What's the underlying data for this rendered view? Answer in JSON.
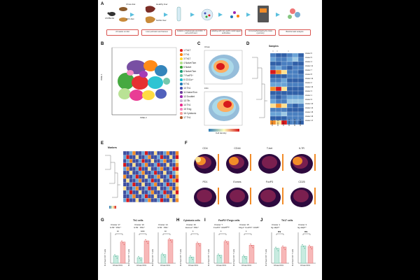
{
  "panel_labels": {
    "A": "A",
    "B": "B",
    "C": "C",
    "D": "D",
    "E": "E",
    "F": "F",
    "G": "G",
    "H": "H",
    "I": "I",
    "J": "J"
  },
  "panel_a": {
    "diet_top": "Chow diet",
    "diet_bottom": "FFC diet",
    "mouse": "C57BL/6J",
    "liver_top": "Healthy liver",
    "liver_bottom": "NASH liver",
    "steps": [
      "24 weeks on diet",
      "Liver perfusion and harvest",
      "Isolation of leukocytes and CD4⁺ T cell enrichment",
      "Labeling with rare-earth metal tagged antibodies",
      "Immunophenotyping by mass cytometry",
      "Bioinformatic analysis"
    ]
  },
  "panel_b": {
    "xlabel": "tSNE 2",
    "ylabel": "tSNE 1",
    "legend": [
      {
        "num": "1",
        "name": "Th17",
        "color": "#e41a1c"
      },
      {
        "num": "2",
        "name": "Th1",
        "color": "#ff7f00"
      },
      {
        "num": "3",
        "name": "Th17",
        "color": "#ffd92f"
      },
      {
        "num": "4",
        "name": "Naive/Tcm",
        "color": "#b2df8a"
      },
      {
        "num": "5",
        "name": "Naive",
        "color": "#33a02c"
      },
      {
        "num": "6",
        "name": "Naive/Tcm",
        "color": "#1b9e77"
      },
      {
        "num": "7",
        "name": "FoxP3⁺",
        "color": "#66c2a5"
      },
      {
        "num": "8",
        "name": "CD11c⁺",
        "color": "#17becf"
      },
      {
        "num": "9",
        "name": "Th1",
        "color": "#1f78b4"
      },
      {
        "num": "10",
        "name": "Th1",
        "color": "#3f51b5"
      },
      {
        "num": "11",
        "name": "Naive/Tcm",
        "color": "#6a3d9a"
      },
      {
        "num": "12",
        "name": "Doublet",
        "color": "#9c27b0"
      },
      {
        "num": "13",
        "name": "Tfh",
        "color": "#cab2d6"
      },
      {
        "num": "14",
        "name": "Th1",
        "color": "#e7298a"
      },
      {
        "num": "15",
        "name": "Treg",
        "color": "#f781bf"
      },
      {
        "num": "16",
        "name": "Cytotoxic",
        "color": "#fb9a99"
      },
      {
        "num": "17",
        "name": "Th1",
        "color": "#b15928"
      }
    ]
  },
  "panel_c": {
    "top": "Chow",
    "bottom": "FFC",
    "colorbar": "Cell density"
  },
  "panel_d": {
    "title": "Samples",
    "clusters": [
      "cluster 6",
      "cluster 5",
      "cluster 4",
      "cluster 11",
      "cluster 7",
      "cluster 8",
      "cluster 12",
      "cluster 2",
      "cluster 13",
      "cluster 3",
      "cluster 1",
      "cluster 9",
      "cluster 10",
      "cluster 14",
      "cluster 15",
      "cluster 16",
      "cluster 17"
    ],
    "samples": [
      "FFC 2",
      "FFC 3",
      "FFC 1",
      "Chow 1",
      "Chow 2",
      "Chow 3"
    ]
  },
  "panel_e": {
    "title": "Markers"
  },
  "panel_f": {
    "markers": [
      "CD4",
      "CD44",
      "T-bet",
      "IL7R",
      "PD1",
      "Eomes",
      "FoxP3",
      "CD25"
    ]
  },
  "panel_g": {
    "group": "Th1 cells",
    "plots": [
      {
        "title": "Cluster 17",
        "sub": "IL7R⁺ PD1⁺",
        "sig": "**",
        "chow": 1.2,
        "ffc": 3.4
      },
      {
        "title": "Cluster 10",
        "sub": "IL7R⁻ PD1⁺",
        "sig": "****",
        "chow": 0.9,
        "ffc": 3.6
      },
      {
        "title": "Cluster 14",
        "sub": "IL7R⁻ PD1⁻",
        "sig": "**",
        "chow": 1.4,
        "ffc": 3.8
      }
    ]
  },
  "panel_h": {
    "group": "Cytotoxic cells",
    "plots": [
      {
        "title": "Cluster 16",
        "sub": "Eomes⁺ PD1⁺",
        "sig": "*",
        "chow": 1.0,
        "ffc": 3.2
      }
    ]
  },
  "panel_i": {
    "group": "FoxP3⁺/Tregs cells",
    "plots": [
      {
        "title": "Cluster 7",
        "sub": "FoxP3⁺ CD25ᴴⁱᵍʰ",
        "sig": "*",
        "chow": 1.3,
        "ffc": 3.5
      },
      {
        "title": "Cluster 15",
        "sub": "Klrg1⁺ FoxP3⁺ CD25⁺",
        "sig": "*",
        "chow": 1.1,
        "ffc": 2.9
      }
    ]
  },
  "panel_j": {
    "group": "Th17 cells",
    "plots": [
      {
        "title": "Cluster 1",
        "sub": "Itg αEβ7⁺",
        "sig": "ns",
        "chow": 2.4,
        "ffc": 2.6
      },
      {
        "title": "Cluster 3",
        "sub": "Itg αEβ7⁺",
        "sig": "ns",
        "chow": 2.8,
        "ffc": 2.7
      }
    ]
  },
  "bar_axis": {
    "ylabel": "% of liver CD4⁺ T cells",
    "xcats": [
      "Chow",
      "FFC"
    ]
  },
  "colors": {
    "step_border": "#d9534f",
    "arrow": "#5bc0de",
    "chow_bar": "#c8ebe0",
    "ffc_bar": "#f7b8b8"
  }
}
